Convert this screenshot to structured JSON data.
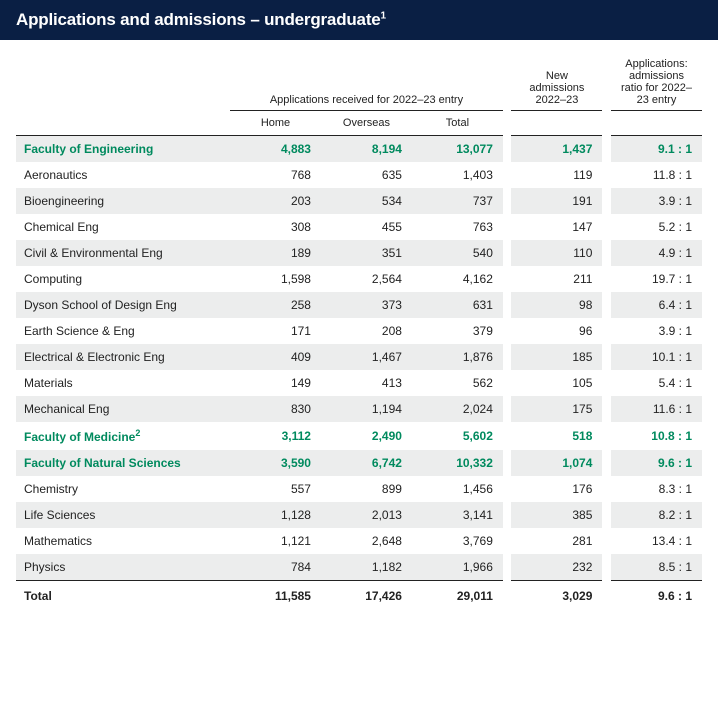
{
  "title": "Applications and admissions – undergraduate",
  "title_footnote": "1",
  "headers": {
    "group_apps": "Applications received for 2022–23 entry",
    "group_admissions": "New admissions 2022–23",
    "group_ratio": "Applications: admissions ratio for 2022–23 entry",
    "sub_home": "Home",
    "sub_overseas": "Overseas",
    "sub_total": "Total"
  },
  "rows": [
    {
      "type": "faculty",
      "label": "Faculty of Engineering",
      "home": "4,883",
      "overseas": "8,194",
      "total": "13,077",
      "admissions": "1,437",
      "ratio": "9.1 : 1"
    },
    {
      "type": "dept",
      "label": "Aeronautics",
      "home": "768",
      "overseas": "635",
      "total": "1,403",
      "admissions": "119",
      "ratio": "11.8 : 1"
    },
    {
      "type": "dept",
      "label": "Bioengineering",
      "home": "203",
      "overseas": "534",
      "total": "737",
      "admissions": "191",
      "ratio": "3.9 : 1"
    },
    {
      "type": "dept",
      "label": "Chemical Eng",
      "home": "308",
      "overseas": "455",
      "total": "763",
      "admissions": "147",
      "ratio": "5.2 : 1"
    },
    {
      "type": "dept",
      "label": "Civil & Environmental Eng",
      "home": "189",
      "overseas": "351",
      "total": "540",
      "admissions": "110",
      "ratio": "4.9 : 1"
    },
    {
      "type": "dept",
      "label": "Computing",
      "home": "1,598",
      "overseas": "2,564",
      "total": "4,162",
      "admissions": "211",
      "ratio": "19.7 : 1"
    },
    {
      "type": "dept",
      "label": "Dyson School of Design Eng",
      "home": "258",
      "overseas": "373",
      "total": "631",
      "admissions": "98",
      "ratio": "6.4 : 1"
    },
    {
      "type": "dept",
      "label": "Earth Science & Eng",
      "home": "171",
      "overseas": "208",
      "total": "379",
      "admissions": "96",
      "ratio": "3.9 : 1"
    },
    {
      "type": "dept",
      "label": "Electrical & Electronic Eng",
      "home": "409",
      "overseas": "1,467",
      "total": "1,876",
      "admissions": "185",
      "ratio": "10.1 : 1"
    },
    {
      "type": "dept",
      "label": "Materials",
      "home": "149",
      "overseas": "413",
      "total": "562",
      "admissions": "105",
      "ratio": "5.4 : 1"
    },
    {
      "type": "dept",
      "label": "Mechanical Eng",
      "home": "830",
      "overseas": "1,194",
      "total": "2,024",
      "admissions": "175",
      "ratio": "11.6 : 1"
    },
    {
      "type": "faculty",
      "label": "Faculty of Medicine",
      "footnote": "2",
      "home": "3,112",
      "overseas": "2,490",
      "total": "5,602",
      "admissions": "518",
      "ratio": "10.8 : 1"
    },
    {
      "type": "faculty",
      "label": "Faculty of Natural Sciences",
      "home": "3,590",
      "overseas": "6,742",
      "total": "10,332",
      "admissions": "1,074",
      "ratio": "9.6 : 1"
    },
    {
      "type": "dept",
      "label": "Chemistry",
      "home": "557",
      "overseas": "899",
      "total": "1,456",
      "admissions": "176",
      "ratio": "8.3 : 1"
    },
    {
      "type": "dept",
      "label": "Life Sciences",
      "home": "1,128",
      "overseas": "2,013",
      "total": "3,141",
      "admissions": "385",
      "ratio": "8.2 : 1"
    },
    {
      "type": "dept",
      "label": "Mathematics",
      "home": "1,121",
      "overseas": "2,648",
      "total": "3,769",
      "admissions": "281",
      "ratio": "13.4 : 1"
    },
    {
      "type": "dept",
      "label": "Physics",
      "home": "784",
      "overseas": "1,182",
      "total": "1,966",
      "admissions": "232",
      "ratio": "8.5 : 1"
    }
  ],
  "total": {
    "label": "Total",
    "home": "11,585",
    "overseas": "17,426",
    "total": "29,011",
    "admissions": "3,029",
    "ratio": "9.6 : 1"
  },
  "colors": {
    "header_bg": "#0a1f44",
    "accent": "#008a5e",
    "row_alt": "#eceded"
  }
}
